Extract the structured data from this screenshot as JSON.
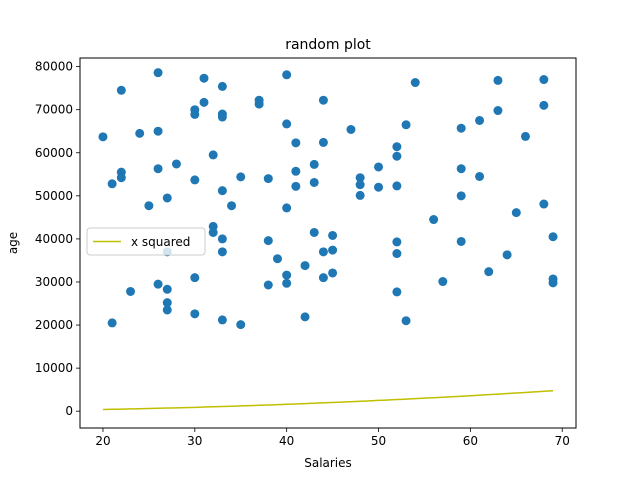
{
  "chart_data": {
    "type": "scatter",
    "title": "random plot",
    "xlabel": "Salaries",
    "ylabel": "age",
    "xlim": [
      17.5,
      71.5
    ],
    "ylim": [
      -3900,
      82000
    ],
    "xticks": [
      20,
      30,
      40,
      50,
      60,
      70
    ],
    "yticks": [
      0,
      10000,
      20000,
      30000,
      40000,
      50000,
      60000,
      70000,
      80000
    ],
    "grid": false,
    "legend": {
      "position": "center-left",
      "entries": [
        "x squared"
      ]
    },
    "colors": {
      "scatter": "#1f77b4",
      "line": "#bfbf00"
    },
    "series": [
      {
        "type": "scatter",
        "points": [
          [
            20,
            63700
          ],
          [
            21,
            52800
          ],
          [
            21,
            20500
          ],
          [
            22,
            74500
          ],
          [
            22,
            55500
          ],
          [
            22,
            54200
          ],
          [
            23,
            27800
          ],
          [
            24,
            64500
          ],
          [
            25,
            47700
          ],
          [
            26,
            78600
          ],
          [
            26,
            65000
          ],
          [
            26,
            56300
          ],
          [
            26,
            29500
          ],
          [
            27,
            49500
          ],
          [
            27,
            37000
          ],
          [
            27,
            28300
          ],
          [
            27,
            25200
          ],
          [
            27,
            23500
          ],
          [
            28,
            57400
          ],
          [
            30,
            70000
          ],
          [
            30,
            68900
          ],
          [
            30,
            53700
          ],
          [
            30,
            31000
          ],
          [
            30,
            22600
          ],
          [
            31,
            77300
          ],
          [
            31,
            71700
          ],
          [
            32,
            59500
          ],
          [
            32,
            42900
          ],
          [
            32,
            41500
          ],
          [
            33,
            75400
          ],
          [
            33,
            69000
          ],
          [
            33,
            68300
          ],
          [
            33,
            51200
          ],
          [
            33,
            40000
          ],
          [
            33,
            37000
          ],
          [
            33,
            21200
          ],
          [
            34,
            47700
          ],
          [
            35,
            54400
          ],
          [
            35,
            20100
          ],
          [
            37,
            72200
          ],
          [
            37,
            71300
          ],
          [
            38,
            54000
          ],
          [
            38,
            39600
          ],
          [
            38,
            29300
          ],
          [
            39,
            35400
          ],
          [
            40,
            78100
          ],
          [
            40,
            66700
          ],
          [
            40,
            47200
          ],
          [
            40,
            31600
          ],
          [
            40,
            29700
          ],
          [
            41,
            62300
          ],
          [
            41,
            55700
          ],
          [
            41,
            52200
          ],
          [
            42,
            33800
          ],
          [
            42,
            21900
          ],
          [
            43,
            57300
          ],
          [
            43,
            53100
          ],
          [
            43,
            41500
          ],
          [
            44,
            72200
          ],
          [
            44,
            62400
          ],
          [
            44,
            37000
          ],
          [
            44,
            31000
          ],
          [
            45,
            40800
          ],
          [
            45,
            37400
          ],
          [
            45,
            32100
          ],
          [
            47,
            65400
          ],
          [
            48,
            54200
          ],
          [
            48,
            52600
          ],
          [
            48,
            50100
          ],
          [
            50,
            56700
          ],
          [
            50,
            52000
          ],
          [
            52,
            61400
          ],
          [
            52,
            59200
          ],
          [
            52,
            52300
          ],
          [
            52,
            39300
          ],
          [
            52,
            36600
          ],
          [
            52,
            27700
          ],
          [
            53,
            66500
          ],
          [
            53,
            21000
          ],
          [
            54,
            76300
          ],
          [
            56,
            44500
          ],
          [
            57,
            30100
          ],
          [
            59,
            65700
          ],
          [
            59,
            56300
          ],
          [
            59,
            50000
          ],
          [
            59,
            39400
          ],
          [
            61,
            67500
          ],
          [
            61,
            54500
          ],
          [
            62,
            32400
          ],
          [
            63,
            76800
          ],
          [
            63,
            69800
          ],
          [
            64,
            36300
          ],
          [
            65,
            46100
          ],
          [
            66,
            63800
          ],
          [
            68,
            77000
          ],
          [
            68,
            71000
          ],
          [
            68,
            48100
          ],
          [
            69,
            40500
          ],
          [
            69,
            30700
          ],
          [
            69,
            29800
          ]
        ]
      },
      {
        "name": "x squared",
        "type": "line",
        "x_range": [
          20,
          69
        ],
        "formula": "y = x^2"
      }
    ]
  }
}
